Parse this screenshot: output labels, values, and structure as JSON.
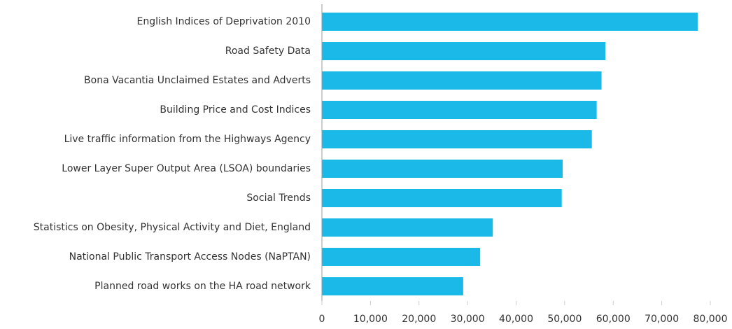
{
  "chart_data": {
    "type": "bar",
    "orientation": "horizontal",
    "categories": [
      "English Indices of Deprivation 2010",
      "Road Safety Data",
      "Bona Vacantia Unclaimed Estates and Adverts",
      "Building Price and Cost Indices",
      "Live traffic information from the Highways Agency",
      "Lower Layer Super Output Area (LSOA) boundaries",
      "Social Trends",
      "Statistics on Obesity, Physical Activity and Diet, England",
      "National Public Transport Access Nodes (NaPTAN)",
      "Planned road works on the HA road network"
    ],
    "values": [
      77400,
      58400,
      57600,
      56600,
      55600,
      49600,
      49400,
      35200,
      32600,
      29100
    ],
    "color": "#1bb9e8",
    "xlim": [
      0,
      80000
    ],
    "xticks": [
      0,
      {
        "value": 10000,
        "label": "10,000"
      },
      {
        "value": 20000,
        "label": "20,000"
      },
      {
        "value": 30000,
        "label": "30,000"
      },
      {
        "value": 40000,
        "label": "40,000"
      },
      {
        "value": 50000,
        "label": "50,000"
      },
      {
        "value": 60000,
        "label": "60,000"
      },
      {
        "value": 70000,
        "label": "70,000"
      },
      {
        "value": 80000,
        "label": "80,000"
      }
    ],
    "grid": false
  }
}
